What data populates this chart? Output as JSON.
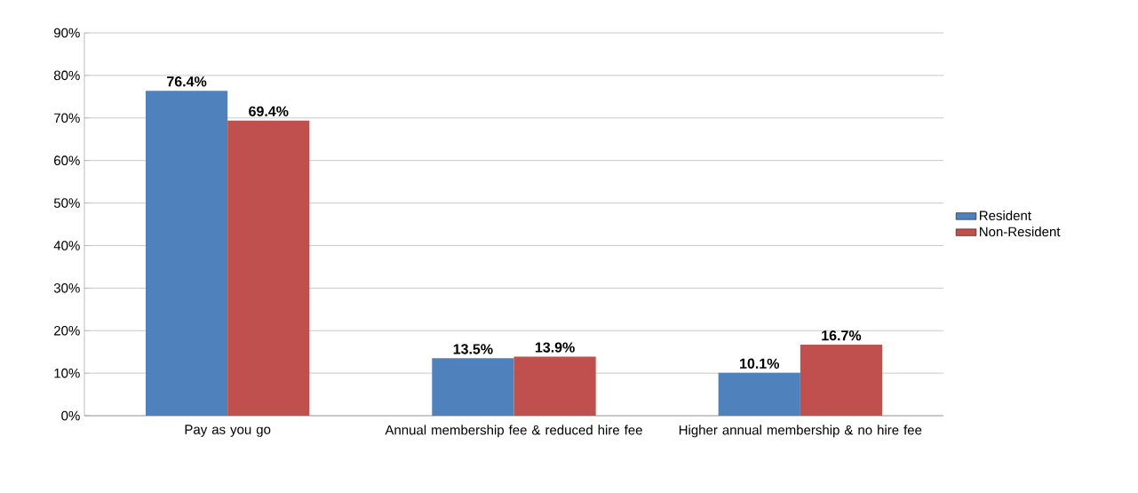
{
  "chart_data": {
    "type": "bar",
    "categories": [
      "Pay as you go",
      "Annual membership fee & reduced hire fee",
      "Higher annual membership & no hire fee"
    ],
    "series": [
      {
        "name": "Resident",
        "color": "#4f81bd",
        "values": [
          76.4,
          13.5,
          10.1
        ],
        "value_labels": [
          "76.4%",
          "13.5%",
          "10.1%"
        ]
      },
      {
        "name": "Non-Resident",
        "color": "#c0504d",
        "values": [
          69.4,
          13.9,
          16.7
        ],
        "value_labels": [
          "69.4%",
          "13.9%",
          "16.7%"
        ]
      }
    ],
    "ylim": [
      0,
      90
    ],
    "yticks": [
      {
        "value": 0,
        "label": "0%"
      },
      {
        "value": 10,
        "label": "10%"
      },
      {
        "value": 20,
        "label": "20%"
      },
      {
        "value": 30,
        "label": "30%"
      },
      {
        "value": 40,
        "label": "40%"
      },
      {
        "value": 50,
        "label": "50%"
      },
      {
        "value": 60,
        "label": "60%"
      },
      {
        "value": 70,
        "label": "70%"
      },
      {
        "value": 80,
        "label": "80%"
      },
      {
        "value": 90,
        "label": "90%"
      }
    ],
    "grid": "y",
    "legend": "right"
  }
}
